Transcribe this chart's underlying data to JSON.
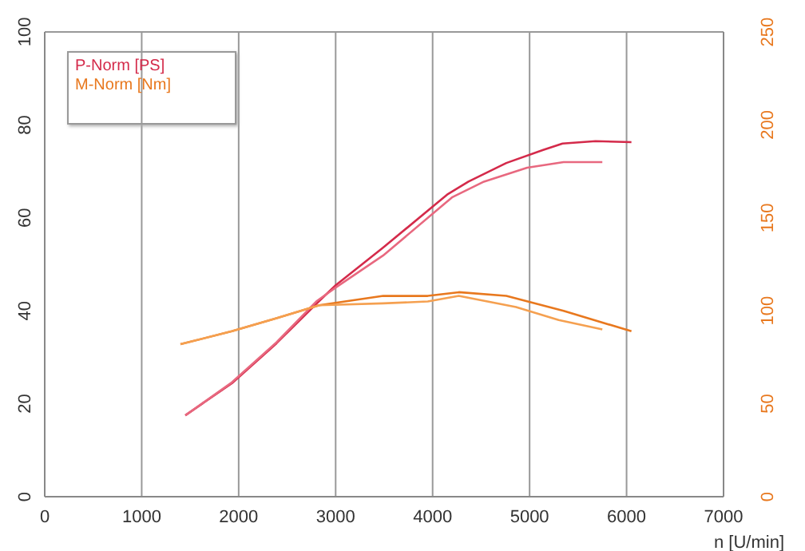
{
  "chart_data": {
    "type": "line",
    "xlabel": "n [U/min]",
    "xlim": [
      0,
      7000
    ],
    "xticks": [
      0,
      1000,
      2000,
      3000,
      4000,
      5000,
      6000,
      7000
    ],
    "ylim": [
      0,
      100
    ],
    "yticks": [
      0,
      20,
      40,
      60,
      80,
      100
    ],
    "y2lim": [
      0,
      250
    ],
    "y2ticks": [
      0,
      50,
      100,
      150,
      200,
      250
    ],
    "grid": true,
    "legend": "top left",
    "marker": "none",
    "line_style": "solid",
    "series": [
      {
        "name": "P-Norm [PS]",
        "color": "#d42a4a",
        "x": [
          1450,
          1930,
          2390,
          2800,
          3000,
          3490,
          4150,
          4370,
          4760,
          5140,
          5340,
          5680,
          6050
        ],
        "values": [
          17.5,
          24.4,
          33,
          41.5,
          45.5,
          53.6,
          65,
          67.8,
          71.8,
          74.6,
          76,
          76.5,
          76.3
        ]
      },
      {
        "color": "#e8687f",
        "x": [
          1450,
          1930,
          2390,
          2800,
          3000,
          3490,
          4200,
          4530,
          4975,
          5350,
          5750
        ],
        "values": [
          17.5,
          24.6,
          33.2,
          42,
          45,
          51.9,
          64.4,
          67.8,
          70.8,
          72,
          72
        ]
      },
      {
        "name": "M-Norm [Nm]",
        "color": "#e8781e",
        "axis": "y2",
        "x": [
          1400,
          1930,
          2390,
          2830,
          3490,
          3950,
          4270,
          4760,
          5350,
          6050
        ],
        "values": [
          82,
          89,
          96,
          103,
          108,
          108,
          110,
          108,
          100,
          89
        ]
      },
      {
        "color": "#f5a050",
        "axis": "y2",
        "x": [
          1400,
          1930,
          2390,
          2830,
          3490,
          3950,
          4270,
          4860,
          5300,
          5750
        ],
        "values": [
          82,
          89,
          96,
          103,
          104,
          105,
          108,
          102,
          95,
          90
        ]
      }
    ]
  }
}
